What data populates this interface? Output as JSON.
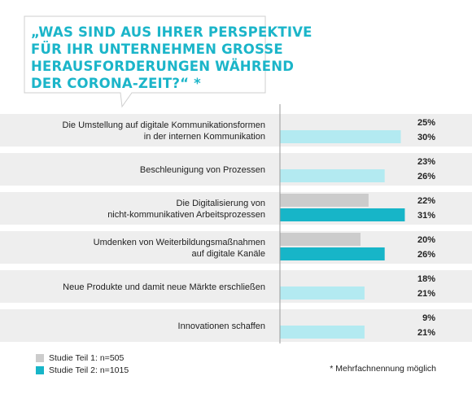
{
  "header": {
    "title_lines": [
      "„WAS SIND AUS IHRER PERSPEKTIVE",
      "FÜR IHR UNTERNEHMEN GROSSE",
      "HERAUSFORDERUNGEN WÄHREND",
      "DER CORONA-ZEIT?“ *"
    ]
  },
  "colors": {
    "accent": "#1bb5c9",
    "band": "#eeeeee",
    "series1_light": "#eeeeee",
    "series1_dark": "#cccccc",
    "series2_light": "#b3eaf1",
    "series2_dark": "#17b5c8"
  },
  "chart_data": {
    "type": "bar",
    "orientation": "horizontal",
    "categories": [
      [
        "Die Umstellung auf digitale Kommunikationsformen",
        "in der internen Kommunikation"
      ],
      [
        "Beschleunigung von Prozessen"
      ],
      [
        "Die Digitalisierung von",
        "nicht-kommunikativen Arbeitsprozessen"
      ],
      [
        "Umdenken von Weiterbildungsmaßnahmen",
        "auf digitale Kanäle"
      ],
      [
        "Neue Produkte und damit neue Märkte erschließen"
      ],
      [
        "Innovationen schaffen"
      ]
    ],
    "series": [
      {
        "name": "Studie Teil 1: n=505",
        "values": [
          25,
          23,
          22,
          20,
          18,
          9
        ],
        "labels": [
          "25%",
          "23%",
          "22%",
          "20%",
          "18%",
          "9%"
        ]
      },
      {
        "name": "Studie Teil 2: n=1015",
        "values": [
          30,
          26,
          31,
          26,
          21,
          21
        ],
        "labels": [
          "30%",
          "26%",
          "31%",
          "26%",
          "21%",
          "21%"
        ]
      }
    ],
    "highlight_dark_rows": [
      2,
      3
    ],
    "xlim": [
      0,
      31
    ]
  },
  "legend": [
    {
      "label": "Studie Teil 1: n=505",
      "color": "#cccccc"
    },
    {
      "label": "Studie Teil 2: n=1015",
      "color": "#17b5c8"
    }
  ],
  "footnote": "* Mehrfachnennung möglich"
}
